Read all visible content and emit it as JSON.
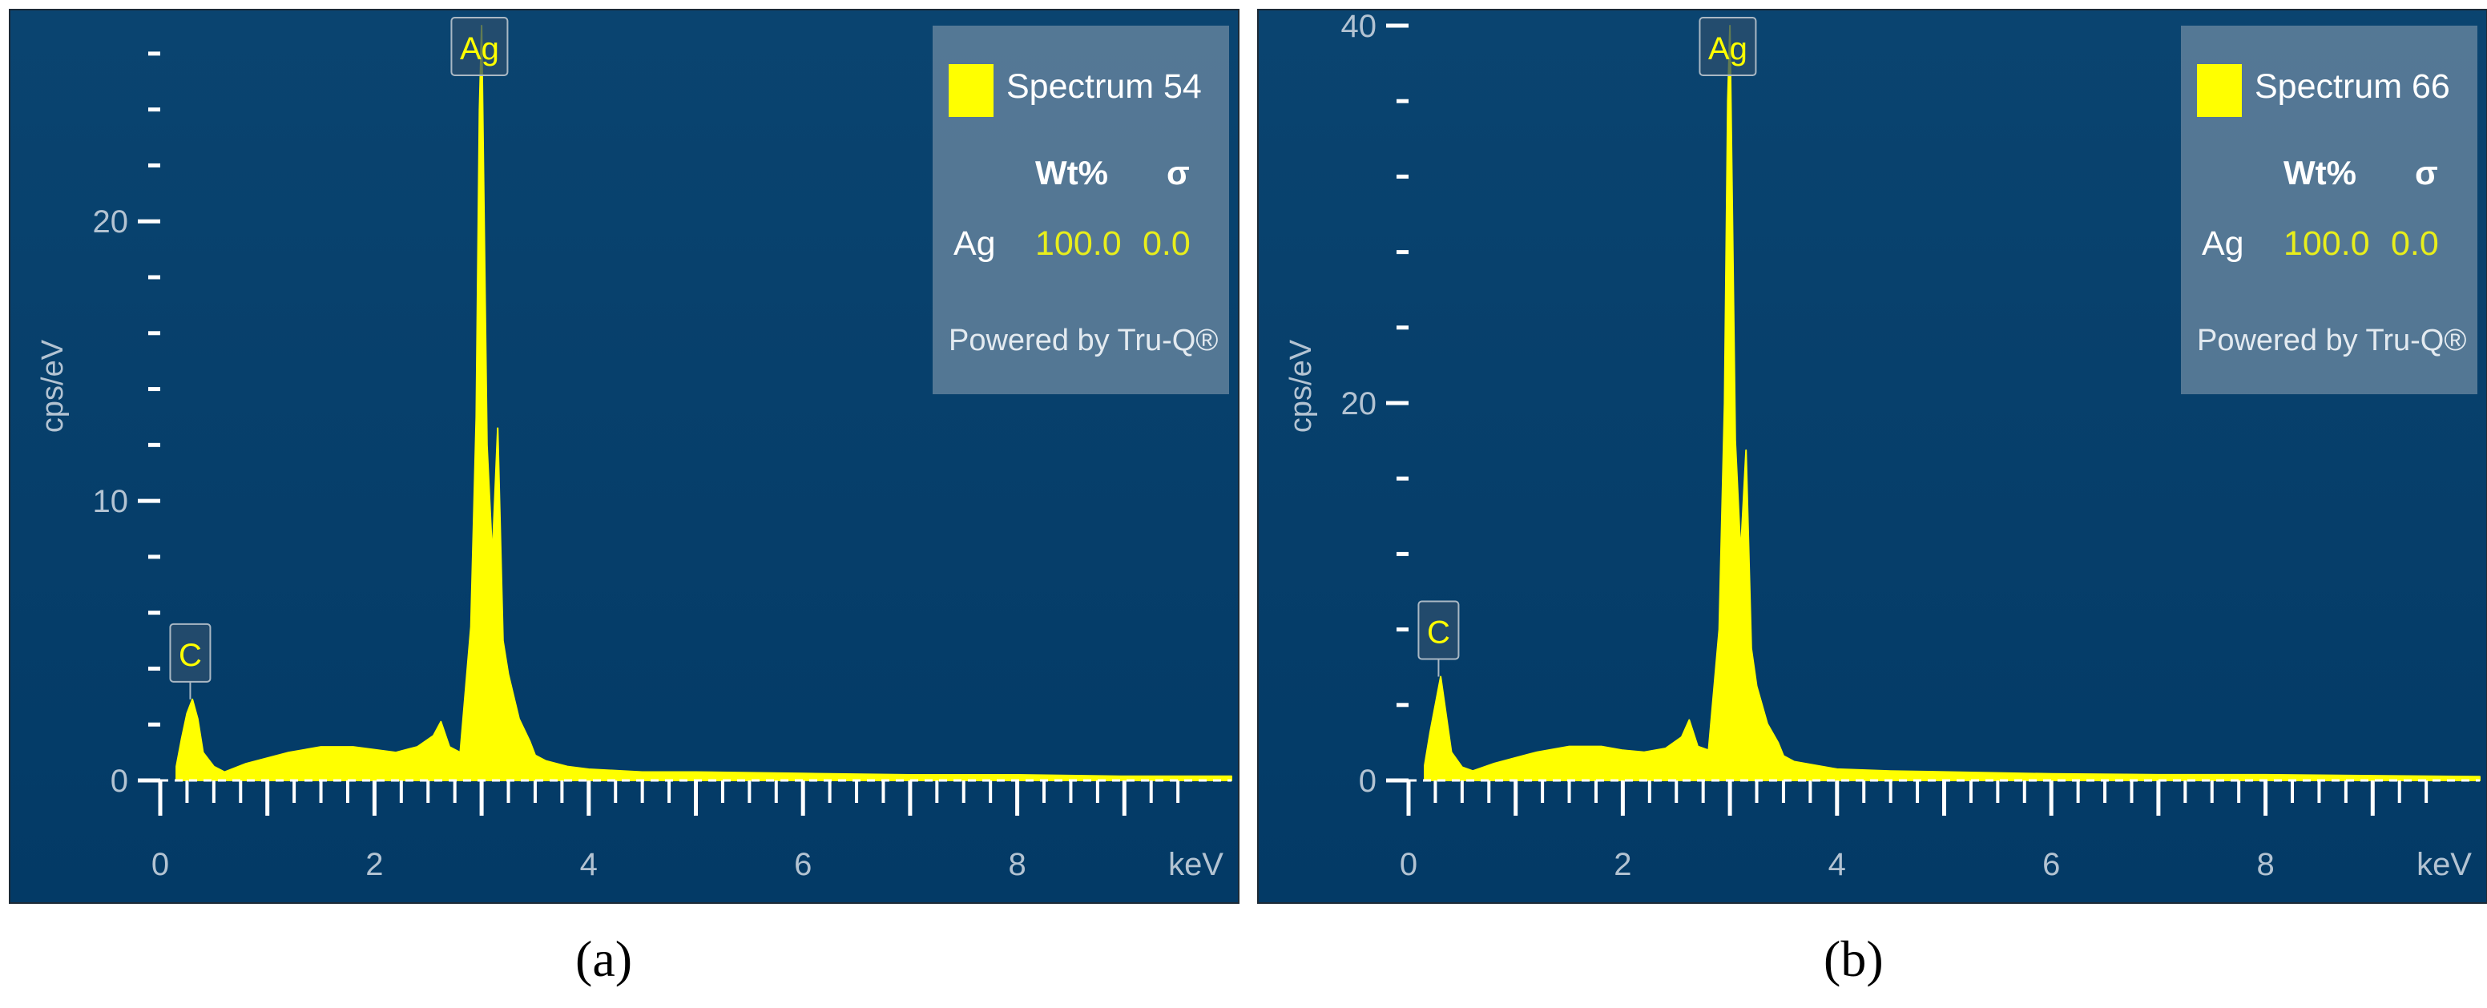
{
  "panels": [
    {
      "caption": "(a)",
      "legend": {
        "spectrum": "Spectrum 54",
        "col_wt": "Wt%",
        "col_sigma": "σ",
        "element": "Ag",
        "wt": "100.0",
        "sigma": "0.0",
        "footer": "Powered by Tru-Q®"
      }
    },
    {
      "caption": "(b)",
      "legend": {
        "spectrum": "Spectrum 66",
        "col_wt": "Wt%",
        "col_sigma": "σ",
        "element": "Ag",
        "wt": "100.0",
        "sigma": "0.0",
        "footer": "Powered by Tru-Q®"
      }
    }
  ],
  "colors": {
    "background_top": "#0a4470",
    "background_bottom": "#033a66",
    "spectrum": "#ffff00",
    "axis": "#ffffff",
    "label_text": "#b3c3d2",
    "peak_label_text": "#ffff00"
  },
  "chart_data": [
    {
      "type": "area",
      "title": "",
      "xlabel": "keV",
      "ylabel": "cps/eV",
      "xlim": [
        0,
        10
      ],
      "ylim": [
        0,
        27
      ],
      "xticks": [
        0,
        2,
        4,
        6,
        8
      ],
      "yticks": [
        0,
        10,
        20
      ],
      "grid": false,
      "legend": "top-right",
      "series": [
        {
          "name": "Spectrum 54",
          "x": [
            0.15,
            0.2,
            0.25,
            0.3,
            0.35,
            0.4,
            0.5,
            0.6,
            0.8,
            1.0,
            1.2,
            1.5,
            1.8,
            2.0,
            2.2,
            2.4,
            2.55,
            2.62,
            2.7,
            2.8,
            2.9,
            2.95,
            2.98,
            3.0,
            3.05,
            3.1,
            3.15,
            3.2,
            3.25,
            3.3,
            3.35,
            3.45,
            3.5,
            3.6,
            3.7,
            3.8,
            4.0,
            4.5,
            5.0,
            6.0,
            7.0,
            8.0,
            9.0,
            10.0
          ],
          "y": [
            0.5,
            1.5,
            2.4,
            2.9,
            2.2,
            1.0,
            0.5,
            0.3,
            0.6,
            0.8,
            1.0,
            1.2,
            1.2,
            1.1,
            1.0,
            1.2,
            1.6,
            2.1,
            1.2,
            1.0,
            5.5,
            13.0,
            24.0,
            27.0,
            12.0,
            8.0,
            12.6,
            5.0,
            3.8,
            3.0,
            2.2,
            1.4,
            0.9,
            0.7,
            0.6,
            0.5,
            0.4,
            0.3,
            0.3,
            0.25,
            0.2,
            0.2,
            0.15,
            0.15
          ]
        }
      ],
      "peak_labels": [
        {
          "text": "C",
          "x": 0.28
        },
        {
          "text": "Ag",
          "x": 2.98
        }
      ]
    },
    {
      "type": "area",
      "title": "",
      "xlabel": "keV",
      "ylabel": "cps/eV",
      "xlim": [
        0,
        10
      ],
      "ylim": [
        0,
        40
      ],
      "xticks": [
        0,
        2,
        4,
        6,
        8
      ],
      "yticks": [
        0,
        20,
        40
      ],
      "grid": false,
      "legend": "top-right",
      "series": [
        {
          "name": "Spectrum 66",
          "x": [
            0.15,
            0.2,
            0.25,
            0.3,
            0.35,
            0.4,
            0.5,
            0.6,
            0.8,
            1.0,
            1.2,
            1.5,
            1.8,
            2.0,
            2.2,
            2.4,
            2.55,
            2.62,
            2.7,
            2.8,
            2.9,
            2.95,
            2.98,
            3.0,
            3.05,
            3.1,
            3.15,
            3.2,
            3.25,
            3.3,
            3.35,
            3.45,
            3.5,
            3.6,
            3.7,
            3.8,
            4.0,
            4.5,
            5.0,
            6.0,
            7.0,
            8.0,
            9.0,
            10.0
          ],
          "y": [
            0.8,
            2.5,
            4.0,
            5.5,
            3.5,
            1.5,
            0.7,
            0.5,
            0.9,
            1.2,
            1.5,
            1.8,
            1.8,
            1.6,
            1.5,
            1.7,
            2.3,
            3.2,
            1.8,
            1.6,
            8.0,
            20.0,
            36.0,
            40.0,
            18.0,
            12.0,
            17.5,
            7.0,
            5.0,
            4.0,
            3.0,
            2.0,
            1.3,
            1.0,
            0.9,
            0.8,
            0.6,
            0.5,
            0.45,
            0.35,
            0.3,
            0.3,
            0.25,
            0.2
          ]
        }
      ],
      "peak_labels": [
        {
          "text": "C",
          "x": 0.28
        },
        {
          "text": "Ag",
          "x": 2.98
        }
      ]
    }
  ]
}
